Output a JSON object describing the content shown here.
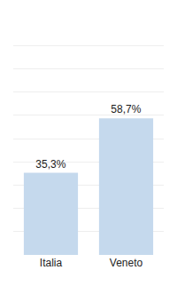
{
  "chart_data": {
    "type": "bar",
    "categories": [
      "Italia",
      "Veneto"
    ],
    "values": [
      35.3,
      58.7
    ],
    "value_labels": [
      "35,3%",
      "58,7%"
    ],
    "data_labels": true,
    "color": "#c5d9ed",
    "ylim": [
      0,
      100
    ],
    "yticks": [
      0,
      10,
      20,
      30,
      40,
      50,
      60,
      70,
      80,
      90,
      100
    ],
    "grid": true,
    "tick_labels": "x"
  }
}
